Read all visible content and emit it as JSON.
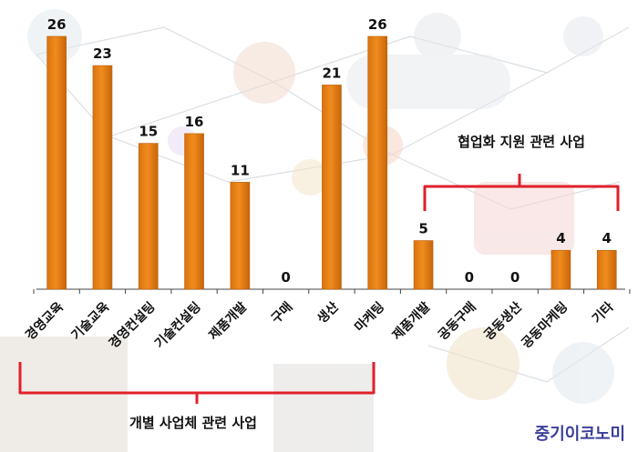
{
  "chart_data": {
    "type": "bar",
    "categories": [
      "경영교육",
      "기술교육",
      "경영컨설팅",
      "기술컨설팅",
      "제품개발",
      "구매",
      "생산",
      "마케팅",
      "제품개발",
      "공동구매",
      "공동생산",
      "공동마케팅",
      "기타"
    ],
    "values": [
      26,
      23,
      15,
      16,
      11,
      0,
      21,
      26,
      5,
      0,
      0,
      4,
      4
    ],
    "groups": [
      {
        "label": "개별 사업체 관련 사업",
        "start": 0,
        "end": 7
      },
      {
        "label": "협업화 지원 관련 사업",
        "start": 8,
        "end": 12
      }
    ],
    "bar_color": "#f08c1e",
    "bracket_color": "#e0202a",
    "ylim": [
      0,
      26
    ]
  },
  "logo_text": "중기이코노미"
}
